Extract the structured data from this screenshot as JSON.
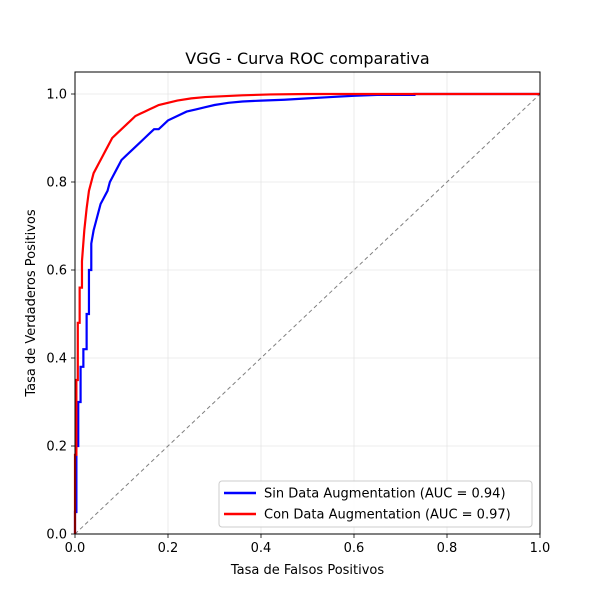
{
  "chart_data": {
    "type": "line",
    "title": "VGG - Curva ROC comparativa",
    "xlabel": "Tasa de Falsos Positivos",
    "ylabel": "Tasa de Verdaderos Positivos",
    "xlim": [
      0.0,
      1.0
    ],
    "ylim": [
      0.0,
      1.05
    ],
    "xticks": [
      "0.0",
      "0.2",
      "0.4",
      "0.6",
      "0.8",
      "1.0"
    ],
    "yticks": [
      "0.0",
      "0.2",
      "0.4",
      "0.6",
      "0.8",
      "1.0"
    ],
    "grid": true,
    "legend_position": "lower-right",
    "series": [
      {
        "name": "Sin Data Augmentation (AUC = 0.94)",
        "color": "#0000ff",
        "x": [
          0.0,
          0.0,
          0.003,
          0.003,
          0.007,
          0.007,
          0.012,
          0.012,
          0.018,
          0.018,
          0.025,
          0.025,
          0.03,
          0.03,
          0.035,
          0.035,
          0.04,
          0.045,
          0.05,
          0.055,
          0.06,
          0.065,
          0.07,
          0.075,
          0.08,
          0.09,
          0.1,
          0.11,
          0.12,
          0.13,
          0.14,
          0.15,
          0.16,
          0.17,
          0.18,
          0.19,
          0.2,
          0.22,
          0.24,
          0.26,
          0.28,
          0.3,
          0.33,
          0.36,
          0.4,
          0.45,
          0.5,
          0.55,
          0.6,
          0.65,
          0.73,
          0.73,
          0.8,
          0.9,
          1.0
        ],
        "y": [
          0.0,
          0.05,
          0.05,
          0.2,
          0.2,
          0.3,
          0.3,
          0.38,
          0.38,
          0.42,
          0.42,
          0.5,
          0.5,
          0.6,
          0.6,
          0.66,
          0.69,
          0.71,
          0.73,
          0.75,
          0.76,
          0.77,
          0.78,
          0.8,
          0.81,
          0.83,
          0.85,
          0.86,
          0.87,
          0.88,
          0.89,
          0.9,
          0.91,
          0.92,
          0.92,
          0.93,
          0.94,
          0.95,
          0.96,
          0.965,
          0.97,
          0.975,
          0.98,
          0.983,
          0.985,
          0.987,
          0.99,
          0.993,
          0.996,
          0.998,
          0.998,
          1.0,
          1.0,
          1.0,
          1.0
        ]
      },
      {
        "name": "Con Data Augmentation (AUC = 0.97)",
        "color": "#ff0000",
        "x": [
          0.0,
          0.0,
          0.003,
          0.003,
          0.006,
          0.006,
          0.01,
          0.01,
          0.015,
          0.015,
          0.02,
          0.025,
          0.03,
          0.035,
          0.04,
          0.045,
          0.05,
          0.055,
          0.06,
          0.065,
          0.07,
          0.08,
          0.09,
          0.1,
          0.11,
          0.12,
          0.13,
          0.14,
          0.15,
          0.16,
          0.17,
          0.18,
          0.2,
          0.22,
          0.25,
          0.28,
          0.32,
          0.36,
          0.42,
          0.5,
          0.6,
          0.7,
          0.8,
          0.9,
          1.0
        ],
        "y": [
          0.0,
          0.18,
          0.18,
          0.35,
          0.35,
          0.48,
          0.48,
          0.56,
          0.56,
          0.62,
          0.69,
          0.74,
          0.78,
          0.8,
          0.82,
          0.83,
          0.84,
          0.85,
          0.86,
          0.87,
          0.88,
          0.9,
          0.91,
          0.92,
          0.93,
          0.94,
          0.95,
          0.955,
          0.96,
          0.965,
          0.97,
          0.975,
          0.98,
          0.985,
          0.99,
          0.993,
          0.995,
          0.997,
          0.999,
          1.0,
          1.0,
          1.0,
          1.0,
          1.0,
          1.0
        ]
      }
    ],
    "reference_line": {
      "x": [
        0.0,
        1.0
      ],
      "y": [
        0.0,
        1.0
      ],
      "color": "#808080"
    }
  }
}
